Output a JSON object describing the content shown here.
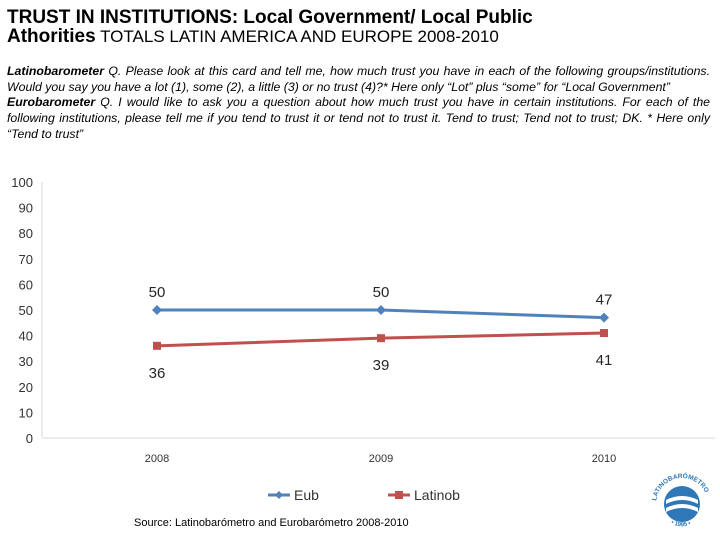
{
  "header": {
    "title_line1": "TRUST IN INSTITUTIONS: Local Government/ Local Public",
    "title_line2_bold": "Athorities",
    "title_line2_rest": " TOTALS LATIN AMERICA AND EUROPE 2008-2010"
  },
  "question": {
    "latino_label": "Latinobarometer",
    "latino_text": " Q. Please look at this card and tell me, how much trust you have in each of the following groups/institutions. Would you say you have a lot (1), some (2), a little (3) or no trust (4)?* Here only “Lot” plus “some” for “Local Government”",
    "euro_label": "Eurobarometer",
    "euro_text": " Q. I would like to ask you a question about how much  trust you have in certain institutions. For each of the following institutions, please tell me if you tend to trust it or tend not to trust it. Tend to trust; Tend not to trust; DK. * Here only “Tend to trust”"
  },
  "source": "Source: Latinobarómetro and Eurobarómetro 2008-2010",
  "logo": {
    "text_top": "LATINOBARÓMETRO",
    "text_bottom": "• 1995 •"
  },
  "chart_data": {
    "type": "line",
    "categories": [
      "2008",
      "2009",
      "2010"
    ],
    "series": [
      {
        "name": "Eub",
        "values": [
          50,
          50,
          47
        ],
        "color": "#4f81bd",
        "marker": "diamond"
      },
      {
        "name": "Latinob",
        "values": [
          36,
          39,
          41
        ],
        "color": "#c0504d",
        "marker": "square"
      }
    ],
    "y_ticks": [
      0,
      10,
      20,
      30,
      40,
      50,
      60,
      70,
      80,
      90,
      100
    ],
    "ylim": [
      0,
      100
    ],
    "grid": false,
    "legend": "bottom"
  }
}
